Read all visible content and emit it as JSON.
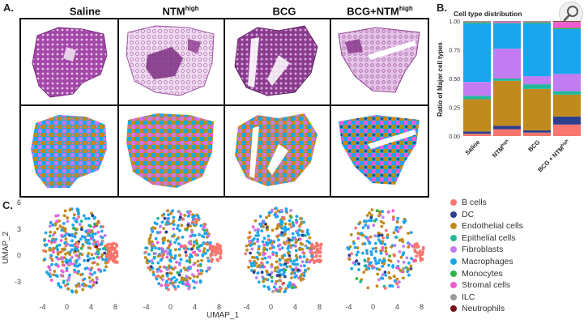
{
  "panel_a": {
    "letter": "A.",
    "columns": [
      {
        "label": "Saline",
        "sup": ""
      },
      {
        "label": "NTM",
        "sup": "high"
      },
      {
        "label": "BCG",
        "sup": ""
      },
      {
        "label": "BCG+NTM",
        "sup": "high"
      }
    ]
  },
  "panel_b": {
    "letter": "B.",
    "title": "Cell type distribution",
    "ylabel": "Ratio of Major cell types",
    "yticks": [
      "0.00",
      "0.25",
      "0.50",
      "0.75",
      "1.00"
    ],
    "xlabels": [
      {
        "label": "Saline",
        "sup": ""
      },
      {
        "label": "NTM",
        "sup": "high"
      },
      {
        "label": "BCG",
        "sup": ""
      },
      {
        "label": "BCG + NTM",
        "sup": "high"
      }
    ]
  },
  "panel_c": {
    "letter": "C.",
    "xlabel": "UMAP_1",
    "ylabel": "UMAP_2",
    "xticks": [
      "-4",
      "0",
      "4",
      "8"
    ],
    "yticks": [
      "6",
      "3",
      "0",
      "-3"
    ]
  },
  "legend": [
    {
      "label": "B cells",
      "color": "#f8766d"
    },
    {
      "label": "DC",
      "color": "#2b3f8c"
    },
    {
      "label": "Endothelial cells",
      "color": "#c08a1e"
    },
    {
      "label": "Epithelial cells",
      "color": "#1fb89a"
    },
    {
      "label": "Fibroblasts",
      "color": "#c27bf0"
    },
    {
      "label": "Macrophages",
      "color": "#1aa6ee"
    },
    {
      "label": "Monocytes",
      "color": "#2cb64a"
    },
    {
      "label": "Stromal cells",
      "color": "#f15ad0"
    },
    {
      "label": "ILC",
      "color": "#9a9a9a"
    },
    {
      "label": "Neutrophils",
      "color": "#7a1010"
    }
  ],
  "chart_data": {
    "type": "bar",
    "stacked": true,
    "title": "Cell type distribution",
    "ylabel": "Ratio of Major cell types",
    "ylim": [
      0,
      1
    ],
    "categories": [
      "Saline",
      "NTMhigh",
      "BCG",
      "BCG + NTMhigh"
    ],
    "series": [
      {
        "name": "B cells",
        "values": [
          0.02,
          0.06,
          0.03,
          0.1
        ]
      },
      {
        "name": "DC",
        "values": [
          0.02,
          0.03,
          0.02,
          0.07
        ]
      },
      {
        "name": "Endothelial cells",
        "values": [
          0.28,
          0.39,
          0.36,
          0.19
        ]
      },
      {
        "name": "Epithelial cells",
        "values": [
          0.03,
          0.02,
          0.04,
          0.03
        ]
      },
      {
        "name": "Fibroblasts",
        "values": [
          0.12,
          0.26,
          0.07,
          0.15
        ]
      },
      {
        "name": "Macrophages",
        "values": [
          0.51,
          0.22,
          0.46,
          0.39
        ]
      },
      {
        "name": "Monocytes",
        "values": [
          0.01,
          0.005,
          0.01,
          0.01
        ]
      },
      {
        "name": "Stromal cells",
        "values": [
          0.005,
          0.01,
          0.005,
          0.05
        ]
      },
      {
        "name": "ILC",
        "values": [
          0.003,
          0.003,
          0.003,
          0.005
        ]
      },
      {
        "name": "Neutrophils",
        "values": [
          0.002,
          0.002,
          0.002,
          0.005
        ]
      }
    ]
  }
}
